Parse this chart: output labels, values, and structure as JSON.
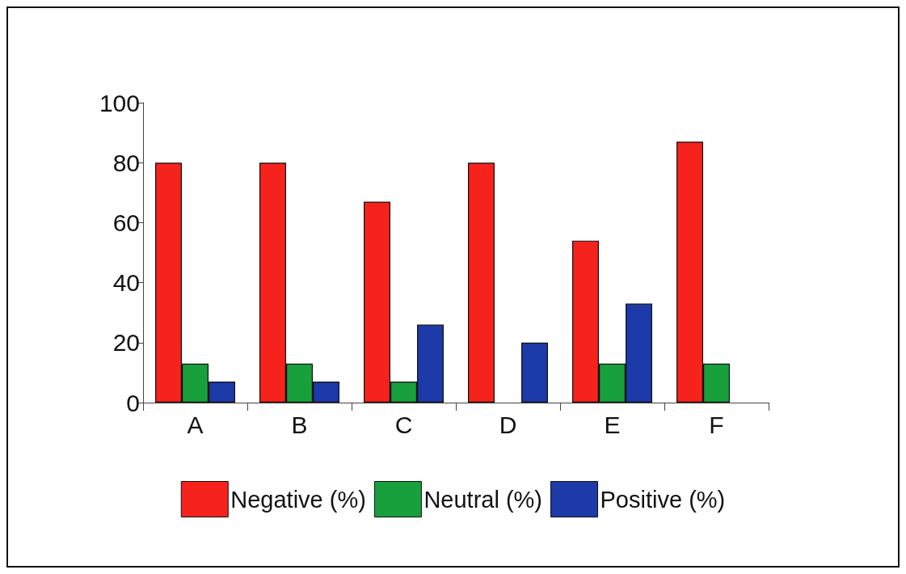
{
  "chart_data": {
    "type": "bar",
    "categories": [
      "A",
      "B",
      "C",
      "D",
      "E",
      "F"
    ],
    "series": [
      {
        "name": "Negative (%)",
        "color": "#f5231c",
        "values": [
          80,
          80,
          67,
          80,
          54,
          87
        ]
      },
      {
        "name": "Neutral (%)",
        "color": "#18a03c",
        "values": [
          13,
          13,
          7,
          null,
          13,
          13
        ]
      },
      {
        "name": "Positive (%)",
        "color": "#1c3aa8",
        "values": [
          7,
          7,
          26,
          20,
          33,
          null
        ]
      }
    ],
    "ylim": [
      0,
      100
    ],
    "yticks": [
      0,
      20,
      40,
      60,
      80,
      100
    ],
    "grid": false,
    "legend": "bottom"
  }
}
